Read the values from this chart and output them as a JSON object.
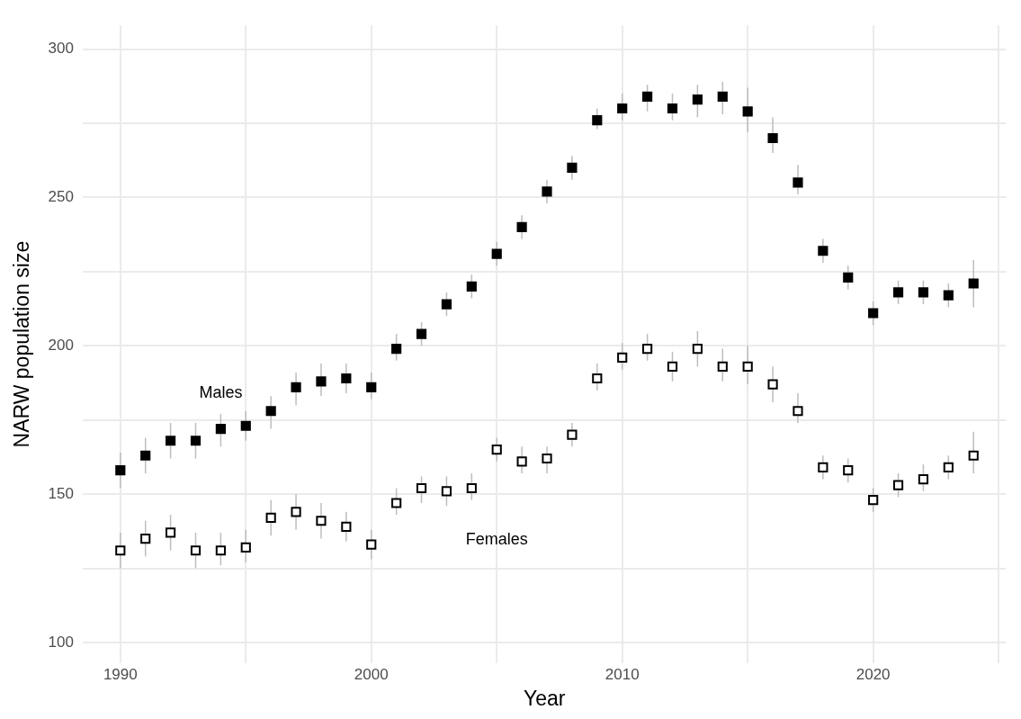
{
  "chart_data": {
    "type": "scatter",
    "xlabel": "Year",
    "ylabel": "NARW population size",
    "x": [
      1990,
      1991,
      1992,
      1993,
      1994,
      1995,
      1996,
      1997,
      1998,
      1999,
      2000,
      2001,
      2002,
      2003,
      2004,
      2005,
      2006,
      2007,
      2008,
      2009,
      2010,
      2011,
      2012,
      2013,
      2014,
      2015,
      2016,
      2017,
      2018,
      2019,
      2020,
      2021,
      2022,
      2023,
      2024
    ],
    "xlim": [
      1988.5,
      2025.3
    ],
    "xticks": [
      1990,
      {
        "value": 1995,
        "label": null
      },
      2000,
      {
        "value": 2005,
        "label": null
      },
      2010,
      {
        "value": 2015,
        "label": null
      },
      2020,
      {
        "value": 2025,
        "label": null
      }
    ],
    "ylim": [
      93,
      308
    ],
    "yticks": [
      100,
      {
        "value": 125,
        "label": null
      },
      150,
      {
        "value": 175,
        "label": null
      },
      200,
      {
        "value": 225,
        "label": null
      },
      250,
      {
        "value": 275,
        "label": null
      },
      300
    ],
    "grid": true,
    "marker": "square",
    "series": [
      {
        "name": "Males",
        "color": "#000000",
        "values": [
          158,
          163,
          168,
          168,
          172,
          173,
          178,
          186,
          188,
          189,
          186,
          199,
          204,
          214,
          220,
          231,
          240,
          252,
          260,
          276,
          280,
          284,
          280,
          283,
          284,
          279,
          270,
          255,
          232,
          223,
          211,
          218,
          218,
          217,
          221
        ],
        "errors": [
          [
            152,
            164
          ],
          [
            157,
            169
          ],
          [
            162,
            174
          ],
          [
            162,
            174
          ],
          [
            166,
            177
          ],
          [
            168,
            178
          ],
          [
            172,
            183
          ],
          [
            180,
            191
          ],
          [
            183,
            194
          ],
          [
            184,
            194
          ],
          [
            182,
            191
          ],
          [
            195,
            204
          ],
          [
            200,
            208
          ],
          [
            210,
            218
          ],
          [
            216,
            224
          ],
          [
            227,
            235
          ],
          [
            236,
            244
          ],
          [
            248,
            256
          ],
          [
            256,
            264
          ],
          [
            273,
            280
          ],
          [
            276,
            285
          ],
          [
            279,
            288
          ],
          [
            276,
            285
          ],
          [
            277,
            288
          ],
          [
            278,
            289
          ],
          [
            272,
            287
          ],
          [
            265,
            277
          ],
          [
            251,
            261
          ],
          [
            228,
            236
          ],
          [
            219,
            227
          ],
          [
            207,
            215
          ],
          [
            214,
            222
          ],
          [
            214,
            222
          ],
          [
            213,
            221
          ],
          [
            213,
            229
          ]
        ]
      },
      {
        "name": "Females",
        "color": "#ffffff",
        "values": [
          131,
          135,
          137,
          131,
          131,
          132,
          142,
          144,
          141,
          139,
          133,
          147,
          152,
          151,
          152,
          165,
          161,
          162,
          170,
          189,
          196,
          199,
          193,
          199,
          193,
          193,
          187,
          178,
          159,
          158,
          148,
          153,
          155,
          159,
          163
        ],
        "errors": [
          [
            125,
            137
          ],
          [
            129,
            141
          ],
          [
            131,
            143
          ],
          [
            125,
            137
          ],
          [
            126,
            137
          ],
          [
            127,
            138
          ],
          [
            136,
            148
          ],
          [
            138,
            150
          ],
          [
            135,
            147
          ],
          [
            134,
            144
          ],
          [
            128,
            138
          ],
          [
            143,
            152
          ],
          [
            147,
            156
          ],
          [
            146,
            156
          ],
          [
            148,
            157
          ],
          [
            161,
            169
          ],
          [
            157,
            166
          ],
          [
            157,
            166
          ],
          [
            166,
            174
          ],
          [
            185,
            194
          ],
          [
            192,
            201
          ],
          [
            195,
            204
          ],
          [
            188,
            198
          ],
          [
            193,
            205
          ],
          [
            188,
            199
          ],
          [
            187,
            200
          ],
          [
            181,
            193
          ],
          [
            174,
            184
          ],
          [
            155,
            163
          ],
          [
            154,
            162
          ],
          [
            144,
            152
          ],
          [
            149,
            157
          ],
          [
            151,
            160
          ],
          [
            155,
            163
          ],
          [
            157,
            171
          ]
        ]
      }
    ]
  }
}
